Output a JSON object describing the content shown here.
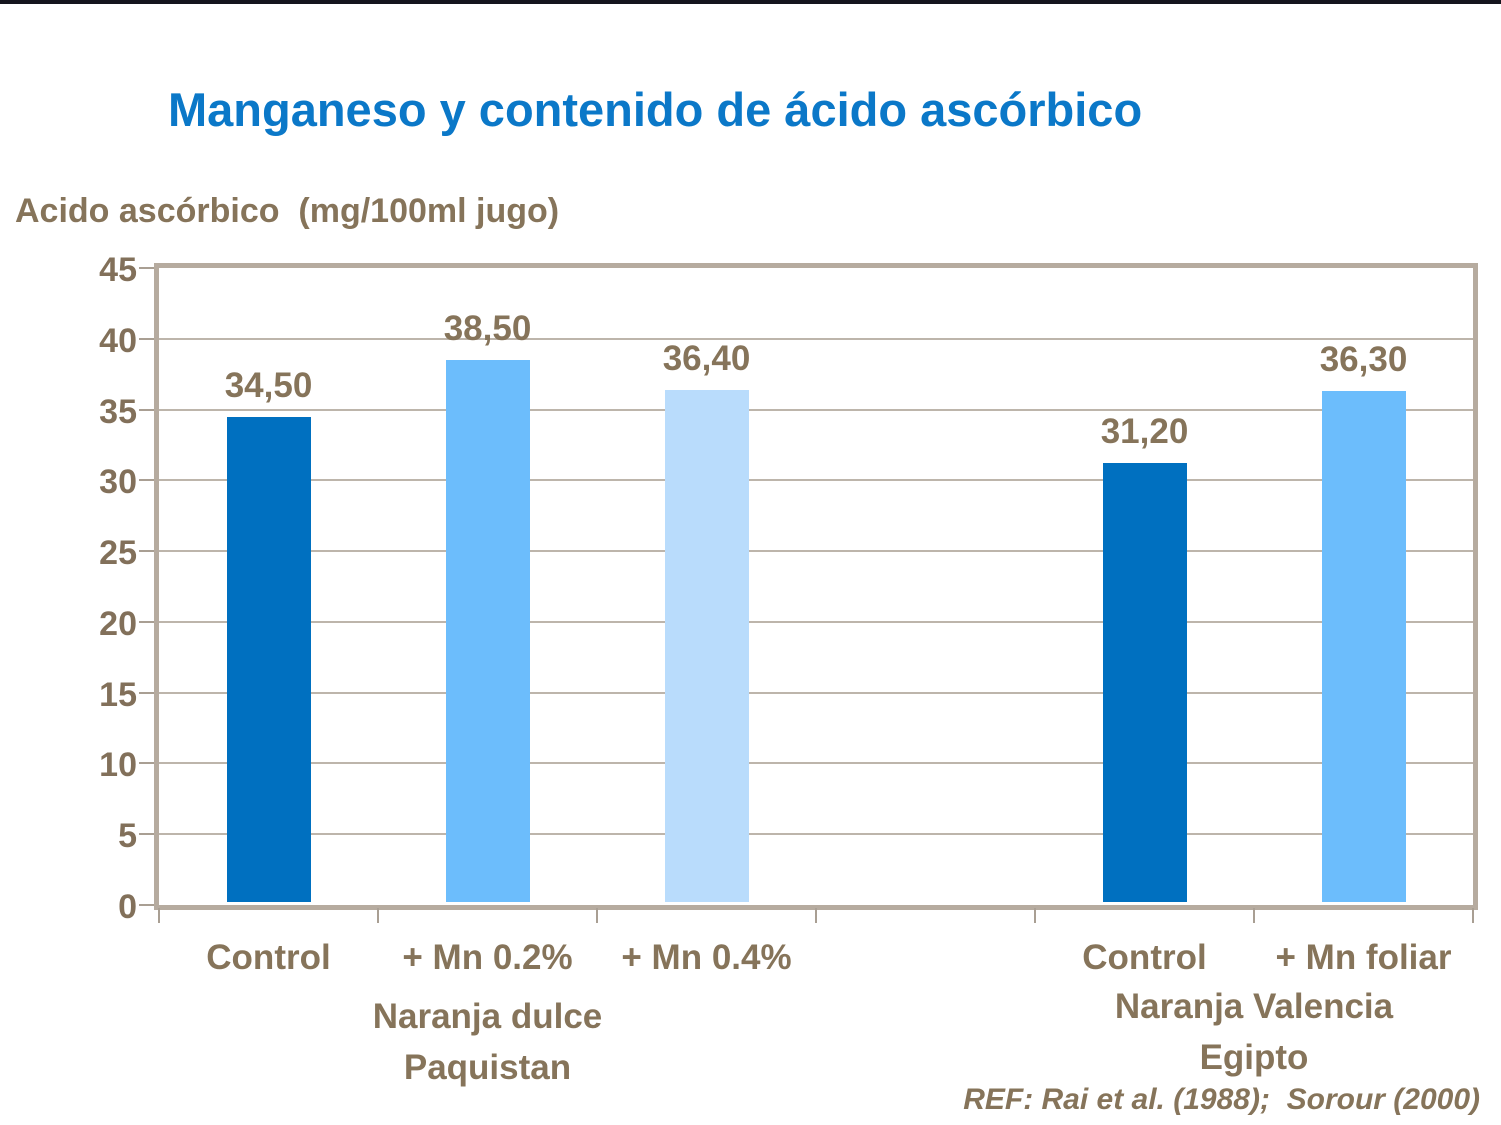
{
  "slide": {
    "top_bar_color": "#15151d",
    "title_color": "#0b78c8",
    "text_color": "#86745a",
    "frame_color": "#b6ab9f",
    "gridline_color": "#bdb5ab"
  },
  "chart_data": {
    "type": "bar",
    "title": "Manganeso y contenido de ácido ascórbico",
    "ylabel": "Acido ascórbico  (mg/100ml jugo)",
    "xlabel": "",
    "ylim": [
      0,
      45
    ],
    "yticks": [
      0,
      5,
      10,
      15,
      20,
      25,
      30,
      35,
      40,
      45
    ],
    "grid": true,
    "legend": "none",
    "categories": [
      "Control",
      "+ Mn 0.2%",
      "+ Mn 0.4%",
      "",
      "Control",
      "+ Mn foliar"
    ],
    "values": [
      34.5,
      38.5,
      36.4,
      null,
      31.2,
      36.3
    ],
    "value_labels": [
      "34,50",
      "38,50",
      "36,40",
      "",
      "31,20",
      "36,30"
    ],
    "bar_colors": [
      "#0070c0",
      "#6cbdfc",
      "#b9dcfc",
      null,
      "#0070c0",
      "#6cbdfc"
    ],
    "groups": [
      {
        "lines": [
          "Naranja dulce",
          "Paquistan"
        ],
        "center_slot": 1
      },
      {
        "lines": [
          "Naranja Valencia",
          "Egipto"
        ],
        "center_slot": 4.5
      }
    ],
    "reference": "REF: Rai et al. (1988);  Sorour (2000)"
  }
}
